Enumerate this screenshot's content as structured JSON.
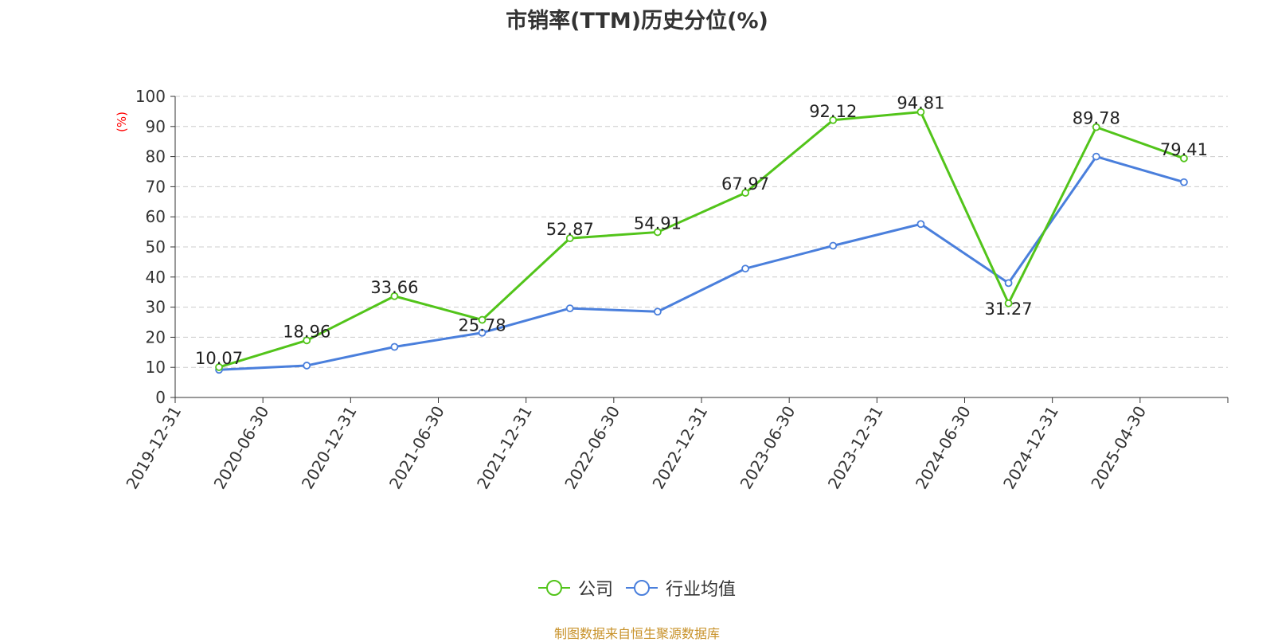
{
  "chart_data": {
    "type": "line",
    "title": "市销率(TTM)历史分位(%)",
    "ylabel": "(%)",
    "ylim": [
      0,
      100
    ],
    "yticks": [
      0,
      10,
      20,
      30,
      40,
      50,
      60,
      70,
      80,
      90,
      100
    ],
    "grid": true,
    "legend_position": "bottom",
    "categories": [
      "2019-12-31",
      "2020-06-30",
      "2020-12-31",
      "2021-06-30",
      "2021-12-31",
      "2022-06-30",
      "2022-12-31",
      "2023-06-30",
      "2023-12-31",
      "2024-06-30",
      "2024-12-31",
      "2025-04-30"
    ],
    "series": [
      {
        "name": "公司",
        "color": "#52c41a",
        "values": [
          10.07,
          18.96,
          33.66,
          25.78,
          52.87,
          54.91,
          67.97,
          92.12,
          94.81,
          31.27,
          89.78,
          79.41
        ],
        "labels": [
          "10.07",
          "18.96",
          "33.66",
          "25.78",
          "52.87",
          "54.91",
          "67.97",
          "92.12",
          "94.81",
          "31.27",
          "89.78",
          "79.41"
        ]
      },
      {
        "name": "行业均值",
        "color": "#4a7fdc",
        "values": [
          9.2,
          10.6,
          16.8,
          21.5,
          29.6,
          28.5,
          42.8,
          50.4,
          57.6,
          38.0,
          80.0,
          71.5
        ]
      }
    ]
  },
  "source": "制图数据来自恒生聚源数据库"
}
